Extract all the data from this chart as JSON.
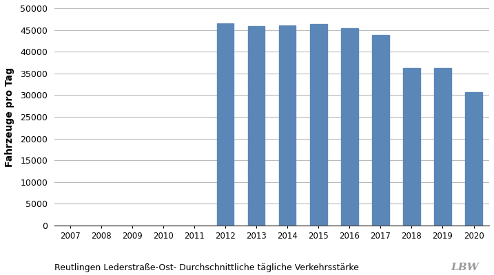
{
  "years": [
    2007,
    2008,
    2009,
    2010,
    2011,
    2012,
    2013,
    2014,
    2015,
    2016,
    2017,
    2018,
    2019,
    2020
  ],
  "values": [
    0,
    0,
    0,
    0,
    0,
    46500,
    45800,
    46000,
    46300,
    45400,
    43800,
    36200,
    36300,
    30700
  ],
  "bar_color": "#5B87B8",
  "ylabel": "Fahrzeuge pro Tag",
  "ylim": [
    0,
    50000
  ],
  "yticks": [
    0,
    5000,
    10000,
    15000,
    20000,
    25000,
    30000,
    35000,
    40000,
    45000,
    50000
  ],
  "caption": "Reutlingen Lederstraße-Ost- Durchschnittliche tägliche Verkehrsstärke",
  "background_color": "#ffffff",
  "grid_color": "#bbbbbb",
  "bar_width": 0.55
}
